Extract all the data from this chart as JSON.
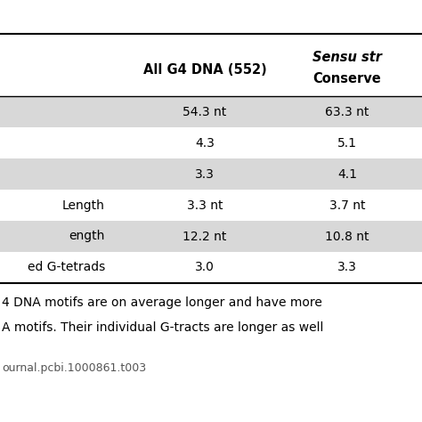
{
  "col_header1_line1": "All G4 DNA (552)",
  "col_header2_line1": "Sensu str",
  "col_header2_line2": "Conserve",
  "row_labels": [
    "",
    "",
    "",
    "Length",
    "ength",
    "ed G-tetrads"
  ],
  "col1_values": [
    "54.3 nt",
    "4.3",
    "3.3",
    "3.3 nt",
    "12.2 nt",
    "3.0"
  ],
  "col2_values": [
    "63.3 nt",
    "5.1",
    "4.1",
    "3.7 nt",
    "10.8 nt",
    "3.3"
  ],
  "shaded_rows": [
    0,
    2,
    4
  ],
  "footer_lines": [
    "4 DNA motifs are on average longer and have more",
    "A motifs. Their individual G-tracts are longer as well"
  ],
  "doi_text": "ournal.pcbi.1000861.t003",
  "bg_color": "#ffffff",
  "shade_color": "#d8d8d8",
  "text_color": "#000000",
  "font_size": 10,
  "header_font_size": 10.5,
  "footer_font_size": 10,
  "doi_font_size": 9
}
